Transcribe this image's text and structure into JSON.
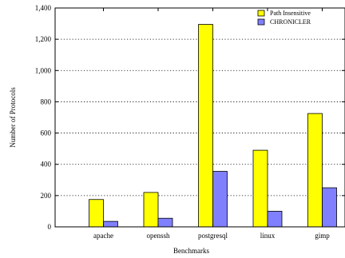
{
  "chart_data": {
    "type": "bar",
    "categories": [
      "apache",
      "openssh",
      "postgresql",
      "linux",
      "gimp"
    ],
    "series": [
      {
        "name": "Path Insensitive",
        "values": [
          175,
          220,
          1295,
          490,
          725
        ],
        "color": "#ffff00"
      },
      {
        "name": "CHRONICLER",
        "values": [
          35,
          55,
          355,
          100,
          250
        ],
        "color": "#8080ff"
      }
    ],
    "xlabel": "Benchmarks",
    "ylabel": "Number of Protocols",
    "ylim": [
      0,
      1400
    ],
    "yticks": [
      0,
      200,
      400,
      600,
      800,
      1000,
      1200,
      1400
    ],
    "ytick_labels": [
      "0",
      "200",
      "400",
      "600",
      "800",
      "1,000",
      "1,200",
      "1,400"
    ],
    "grid": "horizontal dotted",
    "legend_position": "top-right"
  }
}
